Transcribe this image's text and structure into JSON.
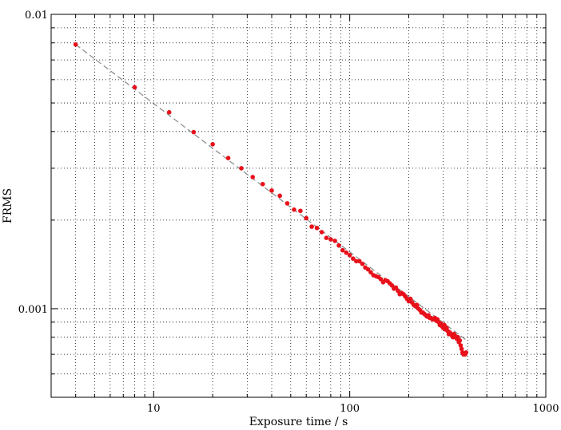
{
  "chart_data": {
    "type": "scatter",
    "title": "",
    "xlabel": "Exposure time / s",
    "ylabel": "FRMS",
    "xscale": "log",
    "yscale": "log",
    "xlim": [
      3,
      1000
    ],
    "ylim": [
      0.0005,
      0.01
    ],
    "grid": true,
    "x_tick_labels": [
      {
        "value": 10,
        "label": "10"
      },
      {
        "value": 100,
        "label": "100"
      },
      {
        "value": 1000,
        "label": "1000"
      }
    ],
    "y_tick_labels": [
      {
        "value": 0.001,
        "label": "0.001"
      },
      {
        "value": 0.01,
        "label": "0.01"
      }
    ],
    "marker_color": "#e8101a",
    "fit_line_color": "#888888",
    "fit_line": {
      "x": [
        4,
        390
      ],
      "y": [
        0.0079,
        0.000785
      ]
    },
    "series": [
      {
        "x": [
          4,
          8,
          12,
          16,
          20,
          24,
          28,
          32,
          36,
          40,
          44,
          48,
          52,
          56,
          60,
          64,
          68,
          72,
          76,
          80,
          84,
          88,
          92,
          96,
          100,
          104,
          108,
          112,
          116,
          120,
          124,
          128,
          132,
          136,
          140,
          144,
          148,
          152,
          156,
          160,
          164,
          168,
          172,
          176,
          180,
          184,
          188,
          192,
          196,
          200,
          204,
          208,
          212,
          216,
          220,
          224,
          228,
          232,
          236,
          240,
          244,
          248,
          252,
          256,
          260,
          264,
          268,
          272,
          276,
          280,
          284,
          288,
          292,
          296,
          300,
          304,
          308,
          312,
          316,
          320,
          324,
          328,
          332,
          336,
          340,
          344,
          348,
          352,
          356,
          360,
          364,
          368,
          372,
          376,
          380,
          384,
          388,
          392
        ],
        "y": [
          0.0079,
          0.00565,
          0.00465,
          0.00398,
          0.00362,
          0.00325,
          0.003,
          0.0028,
          0.00265,
          0.00252,
          0.00242,
          0.00228,
          0.00217,
          0.00215,
          0.00203,
          0.0019,
          0.00188,
          0.00182,
          0.00174,
          0.00172,
          0.0017,
          0.00164,
          0.00158,
          0.00155,
          0.00152,
          0.00148,
          0.00145,
          0.00145,
          0.00142,
          0.00138,
          0.00136,
          0.00133,
          0.0013,
          0.00129,
          0.00128,
          0.00126,
          0.00123,
          0.00125,
          0.00124,
          0.00122,
          0.0012,
          0.00117,
          0.00118,
          0.00115,
          0.00112,
          0.00113,
          0.00112,
          0.0011,
          0.00108,
          0.00106,
          0.00108,
          0.00105,
          0.00103,
          0.00102,
          0.00103,
          0.001,
          0.00099,
          0.00097,
          0.00097,
          0.00096,
          0.00095,
          0.00094,
          0.00095,
          0.00093,
          0.00093,
          0.00092,
          0.00092,
          0.00093,
          0.00091,
          0.00092,
          0.0009,
          0.00088,
          0.00089,
          0.00087,
          0.00086,
          0.00088,
          0.00085,
          0.00086,
          0.00084,
          0.00082,
          0.00083,
          0.00082,
          0.00081,
          0.0008,
          0.00082,
          0.00081,
          0.0008,
          0.00079,
          0.0008,
          0.00077,
          0.00078,
          0.00075,
          0.00073,
          0.00071,
          0.0007,
          0.0007,
          0.0007,
          0.00071
        ]
      }
    ]
  }
}
